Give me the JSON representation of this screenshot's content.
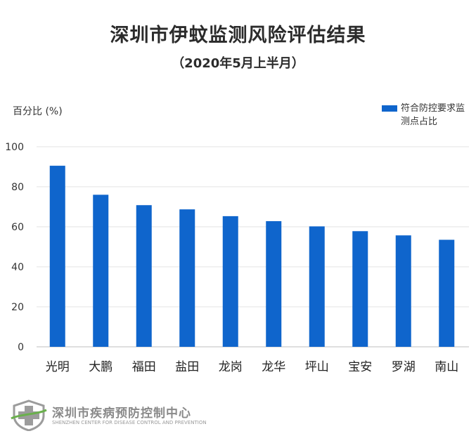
{
  "chart_data": {
    "type": "bar",
    "title": "深圳市伊蚊监测风险评估结果",
    "subtitle": "（2020年5月上半月）",
    "ylabel": "百分比 (%)",
    "xlabel": "",
    "categories": [
      "光明",
      "大鹏",
      "福田",
      "盐田",
      "龙岗",
      "龙华",
      "坪山",
      "宝安",
      "罗湖",
      "南山"
    ],
    "series": [
      {
        "name": "符合防控要求监测点占比",
        "values": [
          90.5,
          76,
          70.8,
          68.7,
          65.3,
          62.8,
          60.2,
          57.8,
          55.7,
          53.5
        ]
      }
    ],
    "ylim": [
      0,
      100
    ],
    "yticks": [
      0,
      20,
      40,
      60,
      80,
      100
    ],
    "grid": true,
    "legend_position": "top-right",
    "color": "#0f65cc"
  },
  "footer": {
    "org_name": "深圳市疾病预防控制中心",
    "org_name_en": "SHENZHEN CENTER FOR DISEASE CONTROL AND PREVENTION"
  }
}
